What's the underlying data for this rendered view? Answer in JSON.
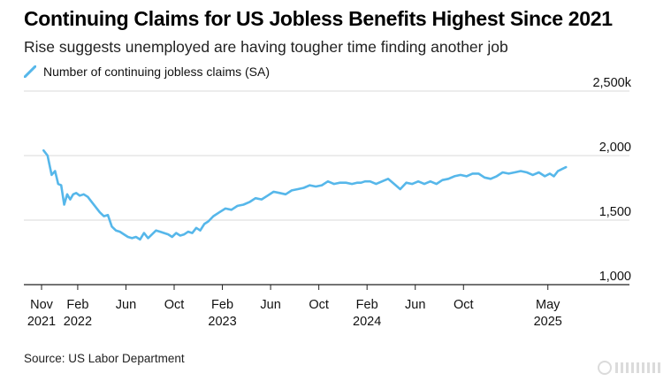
{
  "colors": {
    "series": "#56b7ea",
    "grid": "#d9d9d9",
    "axis": "#222222",
    "text": "#111111"
  },
  "watermark_icon": "gelonghui-logo",
  "source": "Source: US Labor Department",
  "chart_data": {
    "type": "line",
    "title": "Continuing Claims for US Jobless Benefits Highest Since 2021",
    "subtitle": "Rise suggests unemployed are having tougher time finding another job",
    "legend": {
      "position": "top-left",
      "entries": [
        "Number of continuing jobless claims (SA)"
      ]
    },
    "xlabel": "",
    "ylabel": "",
    "ylim": [
      1000,
      2500
    ],
    "xlim": [
      "2021-11",
      "2025-07"
    ],
    "y_ticks": [
      {
        "value": 2500,
        "label": "2,500k"
      },
      {
        "value": 2000,
        "label": "2,000"
      },
      {
        "value": 1500,
        "label": "1,500"
      },
      {
        "value": 1000,
        "label": "1,000"
      }
    ],
    "x_ticks": [
      {
        "value": "2021-11",
        "label": "Nov",
        "label2": "2021"
      },
      {
        "value": "2022-02",
        "label": "Feb",
        "label2": "2022"
      },
      {
        "value": "2022-06",
        "label": "Jun",
        "label2": ""
      },
      {
        "value": "2022-10",
        "label": "Oct",
        "label2": ""
      },
      {
        "value": "2023-02",
        "label": "Feb",
        "label2": "2023"
      },
      {
        "value": "2023-06",
        "label": "Jun",
        "label2": ""
      },
      {
        "value": "2023-10",
        "label": "Oct",
        "label2": ""
      },
      {
        "value": "2024-02",
        "label": "Feb",
        "label2": "2024"
      },
      {
        "value": "2024-06",
        "label": "Jun",
        "label2": ""
      },
      {
        "value": "2024-10",
        "label": "Oct",
        "label2": ""
      },
      {
        "value": "2025-05",
        "label": "May",
        "label2": "2025"
      }
    ],
    "grid": true,
    "series": [
      {
        "name": "Number of continuing jobless claims (SA)",
        "x": [
          "2021-11",
          "2021-11",
          "2021-11",
          "2021-12",
          "2021-12",
          "2021-12",
          "2021-12",
          "2022-01",
          "2022-01",
          "2022-01",
          "2022-01",
          "2022-02",
          "2022-02",
          "2022-02",
          "2022-03",
          "2022-03",
          "2022-03",
          "2022-04",
          "2022-04",
          "2022-04",
          "2022-05",
          "2022-05",
          "2022-05",
          "2022-06",
          "2022-06",
          "2022-06",
          "2022-07",
          "2022-07",
          "2022-07",
          "2022-08",
          "2022-08",
          "2022-08",
          "2022-09",
          "2022-09",
          "2022-09",
          "2022-10",
          "2022-10",
          "2022-10",
          "2022-11",
          "2022-11",
          "2022-11",
          "2022-12",
          "2022-12",
          "2022-12",
          "2023-01",
          "2023-01",
          "2023-02",
          "2023-02",
          "2023-03",
          "2023-03",
          "2023-04",
          "2023-04",
          "2023-05",
          "2023-05",
          "2023-06",
          "2023-06",
          "2023-07",
          "2023-07",
          "2023-08",
          "2023-08",
          "2023-09",
          "2023-09",
          "2023-10",
          "2023-10",
          "2023-11",
          "2023-11",
          "2023-12",
          "2023-12",
          "2024-01",
          "2024-01",
          "2024-01",
          "2024-02",
          "2024-02",
          "2024-03",
          "2024-03",
          "2024-04",
          "2024-04",
          "2024-05",
          "2024-05",
          "2024-06",
          "2024-06",
          "2024-07",
          "2024-07",
          "2024-08",
          "2024-08",
          "2024-09",
          "2024-09",
          "2024-10",
          "2024-10",
          "2024-11",
          "2024-11",
          "2024-12",
          "2024-12",
          "2025-01",
          "2025-01",
          "2025-02",
          "2025-02",
          "2025-03",
          "2025-03",
          "2025-04",
          "2025-04",
          "2025-05",
          "2025-05",
          "2025-05",
          "2025-06"
        ],
        "values": [
          2040,
          2000,
          1850,
          1880,
          1780,
          1770,
          1620,
          1700,
          1660,
          1700,
          1710,
          1690,
          1700,
          1680,
          1640,
          1600,
          1560,
          1530,
          1540,
          1450,
          1420,
          1410,
          1390,
          1370,
          1360,
          1370,
          1350,
          1400,
          1360,
          1390,
          1420,
          1410,
          1400,
          1390,
          1370,
          1400,
          1380,
          1390,
          1410,
          1400,
          1440,
          1420,
          1470,
          1490,
          1530,
          1560,
          1590,
          1580,
          1610,
          1620,
          1640,
          1670,
          1660,
          1690,
          1720,
          1710,
          1700,
          1730,
          1740,
          1750,
          1770,
          1760,
          1770,
          1800,
          1780,
          1790,
          1790,
          1780,
          1790,
          1790,
          1800,
          1800,
          1780,
          1800,
          1820,
          1780,
          1740,
          1790,
          1780,
          1800,
          1780,
          1800,
          1780,
          1810,
          1820,
          1840,
          1850,
          1840,
          1860,
          1860,
          1830,
          1820,
          1840,
          1870,
          1860,
          1870,
          1880,
          1870,
          1850,
          1870,
          1840,
          1860,
          1840,
          1880,
          1910
        ]
      }
    ]
  }
}
